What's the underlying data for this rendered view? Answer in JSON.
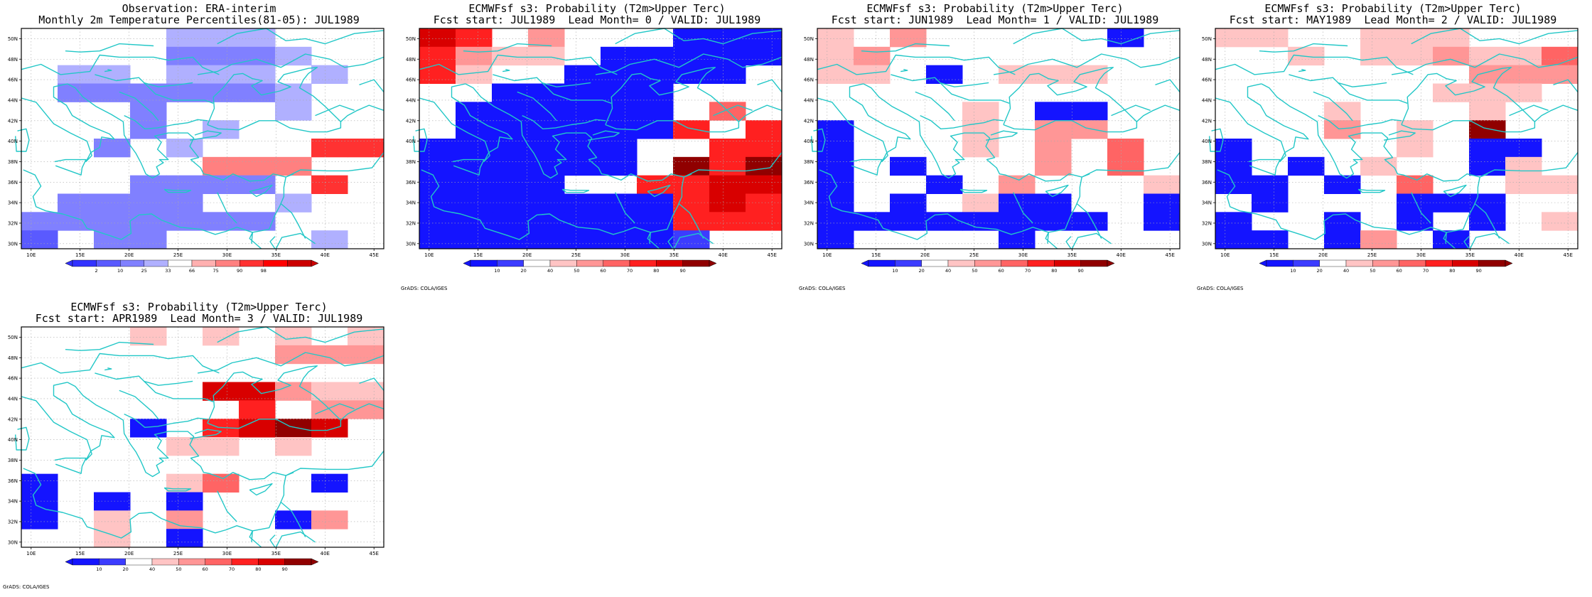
{
  "colors": {
    "coast": "#22c7c7",
    "grid": "#aaaaaa",
    "frame": "#000000",
    "obs_scale": [
      "#3232ff",
      "#5a5aff",
      "#8080ff",
      "#b0b0ff",
      "#ffffff",
      "#ffb0b0",
      "#ff8080",
      "#ff3232",
      "#ff0000",
      "#cc0000"
    ],
    "prob_scale": [
      "#1414ff",
      "#3c3cff",
      "#ffffff",
      "#ffc4c4",
      "#ff9696",
      "#ff6464",
      "#ff2020",
      "#d80000",
      "#900000"
    ]
  },
  "axes": {
    "x_ticks": [
      "10E",
      "15E",
      "20E",
      "25E",
      "30E",
      "35E",
      "40E",
      "45E"
    ],
    "y_ticks": [
      "50N",
      "48N",
      "46N",
      "44N",
      "42N",
      "40N",
      "38N",
      "36N",
      "34N",
      "32N",
      "30N"
    ],
    "lon_range": [
      9,
      46
    ],
    "lat_range": [
      29.5,
      51
    ]
  },
  "panels": [
    {
      "title_line1": "Observation: ERA-interim",
      "title_line2": "Monthly 2m Temperature Percentiles(81-05): JUL1989",
      "credit": "",
      "colorbar_labels": [
        "2",
        "10",
        "25",
        "33",
        "66",
        "75",
        "90",
        "98"
      ],
      "colorbar_scale": "obs",
      "grid": [
        "....333...",
        "....2223..",
        ".33.333.3.",
        ".2222223..",
        "...2...3..",
        "...2.3....",
        "..2.3...77",
        ".....666..",
        "...2222.7.",
        ".2222..3..",
        "2222222...",
        "1.22....3."
      ]
    },
    {
      "title_line1": "ECMWFsf s3: Probability (T2m>Upper Terc)",
      "title_line2": "Fcst start: JUL1989  Lead Month= 0 / VALID: JUL1989",
      "credit": "GrADS: COLA/IGES",
      "colorbar_labels": [
        "10",
        "20",
        "40",
        "50",
        "60",
        "70",
        "80",
        "90"
      ],
      "colorbar_scale": "prob",
      "grid": [
        "76.4...000",
        "6433.00000",
        "63..00000.",
        "..00000...",
        ".000000.5.",
        ".0000006.6",
        "000000..66",
        "000000.868",
        "0000..6677",
        "0000000676",
        "0000000666",
        "00000001.."
      ]
    },
    {
      "title_line1": "ECMWFsf s3: Probability (T2m>Upper Terc)",
      "title_line2": "Fcst start: JUN1989  Lead Month= 1 / VALID: JUL1989",
      "credit": "GrADS: COLA/IGES",
      "colorbar_labels": [
        "10",
        "20",
        "40",
        "50",
        "60",
        "70",
        "80",
        "90"
      ],
      "colorbar_scale": "prob",
      "grid": [
        "3.4.....0.",
        "34........",
        "33.0.333..",
        "..........",
        "....3.00..",
        "0...3.44..",
        "0...3.4.5.",
        "0.0...4.5.",
        "0..0.4...3",
        "0.0.300..0",
        "00000000.0",
        "0....0...."
      ]
    },
    {
      "title_line1": "ECMWFsf s3: Probability (T2m>Upper Terc)",
      "title_line2": "Fcst start: MAY1989  Lead Month= 2 / VALID: JUL1989",
      "credit": "GrADS: COLA/IGES",
      "colorbar_labels": [
        "10",
        "20",
        "40",
        "50",
        "60",
        "70",
        "80",
        "90"
      ],
      "colorbar_scale": "prob",
      "grid": [
        "33..333...",
        "..3.334335",
        ".......444",
        "......333.",
        "...3...3..",
        "...4.3.8..",
        "0....3.00.",
        "0.0.3..03.",
        "00.0.5..33",
        ".0...000..",
        "0..0.0.0.3",
        "00.04.0..."
      ]
    },
    {
      "title_line1": "ECMWFsf s3: Probability (T2m>Upper Terc)",
      "title_line2": "Fcst start: APR1989  Lead Month= 3 / VALID: JUL1989",
      "credit": "GrADS: COLA/IGES",
      "colorbar_labels": [
        "10",
        "20",
        "40",
        "50",
        "60",
        "70",
        "80",
        "90"
      ],
      "colorbar_scale": "prob",
      "grid": [
        "...3.3.3.3",
        ".......444",
        "..........",
        ".....77433",
        "......6.44",
        "...0.6787.",
        "....33.3..",
        "..........",
        "0...35..0.",
        "0.0.0.....",
        "0.3.4..04.",
        "..3.0....."
      ]
    }
  ]
}
